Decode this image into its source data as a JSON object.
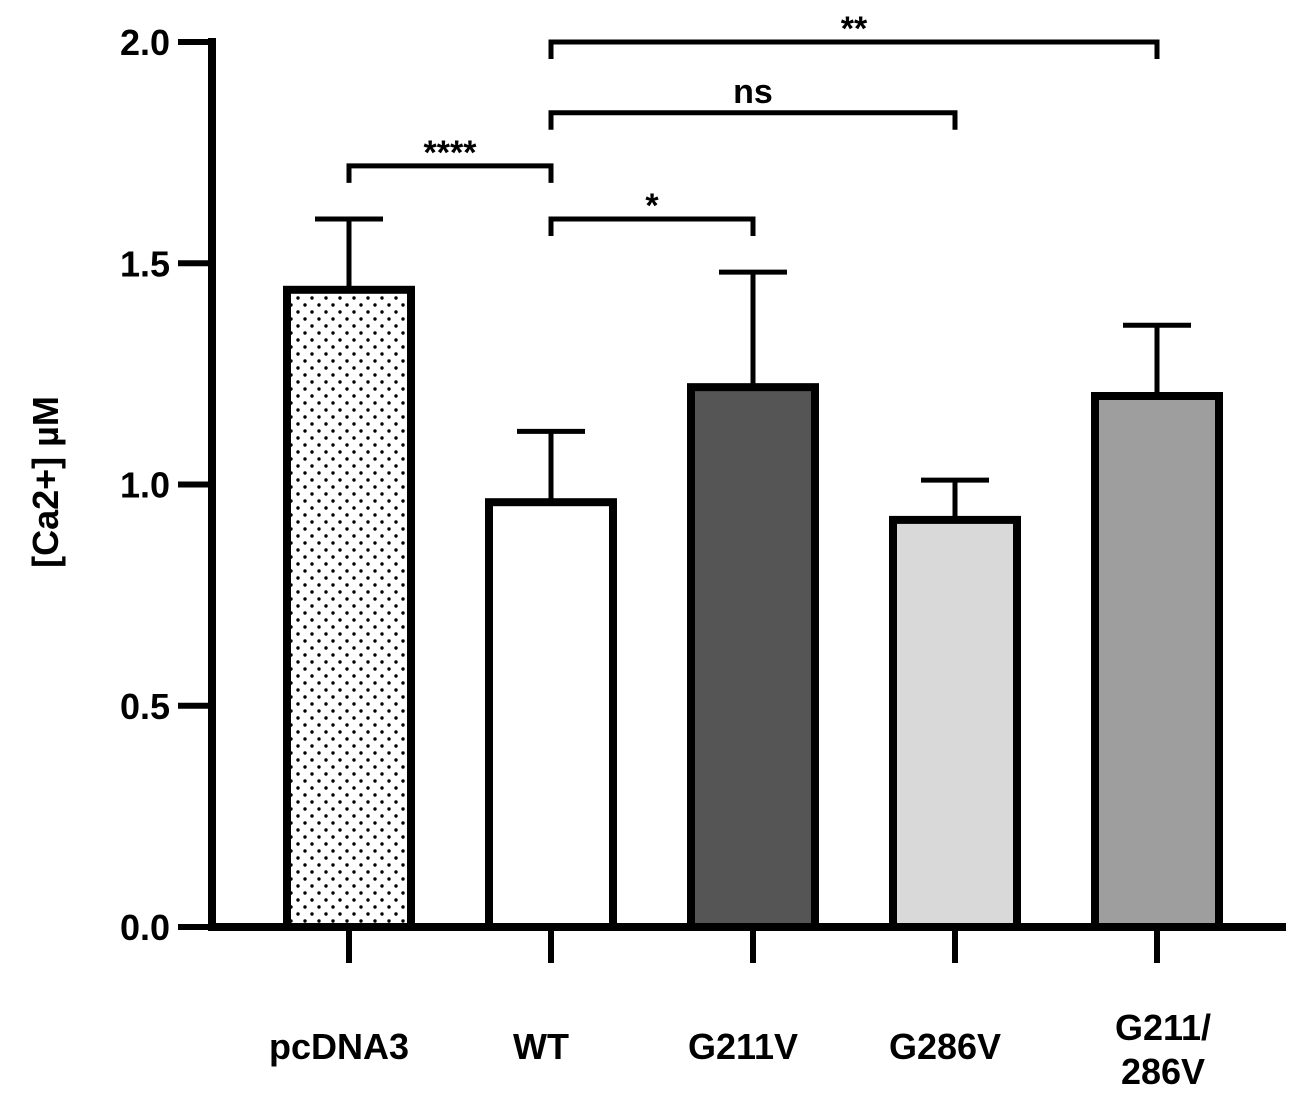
{
  "chart_data": {
    "type": "bar",
    "title": "",
    "xlabel": "",
    "ylabel": "[Ca2+] µM",
    "ylim": [
      0,
      2.0
    ],
    "yticks": [
      "0.0",
      "0.5",
      "1.0",
      "1.5",
      "2.0"
    ],
    "categories": [
      [
        "pcDNA3"
      ],
      [
        "WT"
      ],
      [
        "G211V"
      ],
      [
        "G286V"
      ],
      [
        "G211/",
        "286V"
      ]
    ],
    "values": [
      1.44,
      0.96,
      1.22,
      0.92,
      1.2
    ],
    "errors": [
      0.16,
      0.16,
      0.26,
      0.09,
      0.16
    ],
    "fills": [
      "dots",
      "#ffffff",
      "#555555",
      "#d9d9d9",
      "#9e9e9e"
    ],
    "comparisons": [
      {
        "from": 0,
        "to": 1,
        "label": "****",
        "y": 1.72
      },
      {
        "from": 1,
        "to": 2,
        "label": "*",
        "y": 1.6
      },
      {
        "from": 1,
        "to": 3,
        "label": "ns",
        "y": 1.84
      },
      {
        "from": 1,
        "to": 4,
        "label": "**",
        "y": 2.0
      }
    ]
  }
}
